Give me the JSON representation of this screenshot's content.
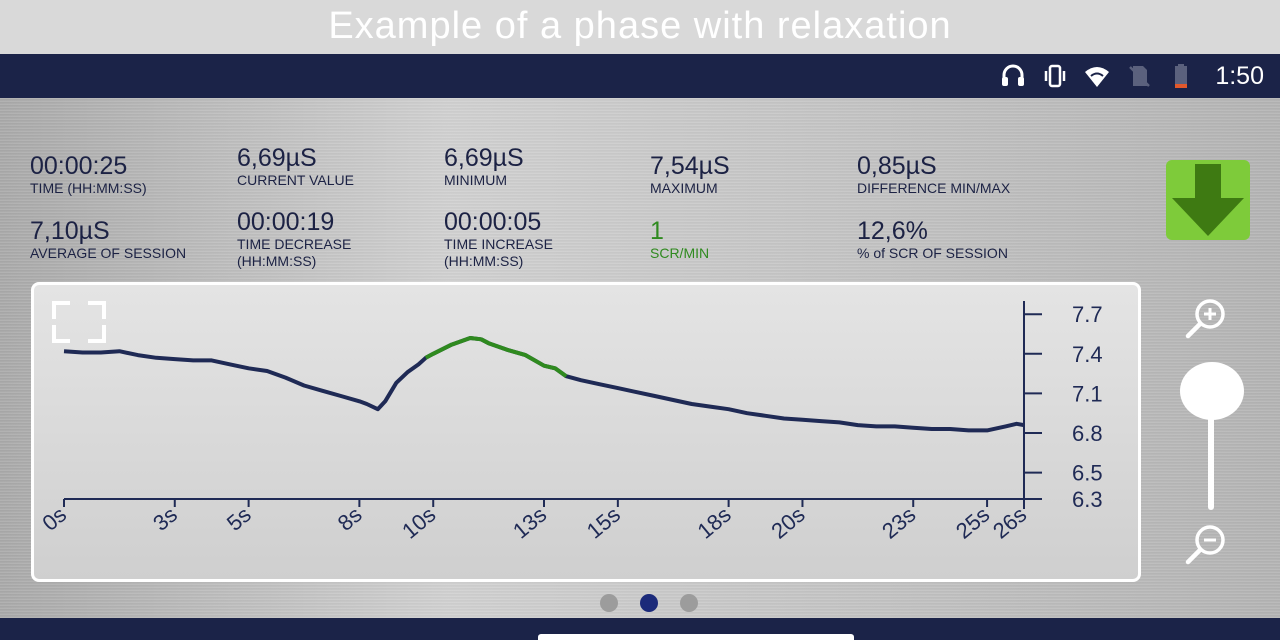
{
  "banner": {
    "title": "Example of a phase with relaxation"
  },
  "status_bar": {
    "time": "1:50",
    "icons": [
      "headset-icon",
      "vibrate-icon",
      "wifi-icon",
      "no-sim-icon",
      "battery-low-icon"
    ]
  },
  "stats": [
    {
      "value": "00:00:25",
      "label": "TIME (HH:MM:SS)"
    },
    {
      "value": "6,69µS",
      "label": "CURRENT VALUE"
    },
    {
      "value": "6,69µS",
      "label": "MINIMUM"
    },
    {
      "value": "7,54µS",
      "label": "MAXIMUM"
    },
    {
      "value": "0,85µS",
      "label": "DIFFERENCE MIN/MAX"
    },
    {
      "value": "7,10µS",
      "label": "AVERAGE OF SESSION"
    },
    {
      "value": "00:00:19",
      "label": "TIME DECREASE",
      "label2": "(HH:MM:SS)"
    },
    {
      "value": "00:00:05",
      "label": "TIME INCREASE",
      "label2": "(HH:MM:SS)"
    },
    {
      "value": "1",
      "label": "SCR/MIN"
    },
    {
      "value": "12,6%",
      "label": "% of SCR OF SESSION"
    }
  ],
  "colors": {
    "line": "#1f2a55",
    "highlight": "#2f8a1f",
    "accent_green": "#7ecb3a",
    "bar_navy": "#1b2348"
  },
  "chart_data": {
    "type": "line",
    "x_ticks": [
      "0s",
      "3s",
      "5s",
      "8s",
      "10s",
      "13s",
      "15s",
      "18s",
      "20s",
      "23s",
      "25s",
      "26s"
    ],
    "x_tick_values": [
      0,
      3,
      5,
      8,
      10,
      13,
      15,
      18,
      20,
      23,
      25,
      26
    ],
    "y_ticks": [
      "7.7",
      "7.4",
      "7.1",
      "6.8",
      "6.5",
      "6.3"
    ],
    "y_tick_values": [
      7.7,
      7.4,
      7.1,
      6.8,
      6.5,
      6.3
    ],
    "xlim": [
      0,
      26
    ],
    "ylim": [
      6.3,
      7.8
    ],
    "series": [
      {
        "values": [
          [
            0,
            7.42
          ],
          [
            0.5,
            7.41
          ],
          [
            1,
            7.41
          ],
          [
            1.5,
            7.42
          ],
          [
            2,
            7.39
          ],
          [
            2.5,
            7.37
          ],
          [
            3,
            7.36
          ],
          [
            3.5,
            7.35
          ],
          [
            4,
            7.35
          ],
          [
            4.5,
            7.32
          ],
          [
            5,
            7.29
          ],
          [
            5.5,
            7.27
          ],
          [
            6,
            7.22
          ],
          [
            6.5,
            7.16
          ],
          [
            7,
            7.12
          ],
          [
            7.5,
            7.08
          ],
          [
            8,
            7.04
          ],
          [
            8.2,
            7.02
          ],
          [
            8.5,
            6.98
          ],
          [
            8.7,
            7.04
          ],
          [
            9,
            7.18
          ],
          [
            9.3,
            7.26
          ],
          [
            9.6,
            7.32
          ],
          [
            9.8,
            7.37
          ],
          [
            10,
            7.4
          ],
          [
            10.5,
            7.47
          ],
          [
            11,
            7.52
          ],
          [
            11.3,
            7.51
          ],
          [
            11.5,
            7.48
          ],
          [
            12,
            7.43
          ],
          [
            12.5,
            7.39
          ],
          [
            13,
            7.31
          ],
          [
            13.3,
            7.29
          ],
          [
            13.6,
            7.23
          ],
          [
            14,
            7.2
          ],
          [
            14.5,
            7.17
          ],
          [
            15,
            7.14
          ],
          [
            15.5,
            7.11
          ],
          [
            16,
            7.08
          ],
          [
            16.5,
            7.05
          ],
          [
            17,
            7.02
          ],
          [
            17.5,
            7.0
          ],
          [
            18,
            6.98
          ],
          [
            18.5,
            6.95
          ],
          [
            19,
            6.93
          ],
          [
            19.5,
            6.91
          ],
          [
            20,
            6.9
          ],
          [
            20.5,
            6.89
          ],
          [
            21,
            6.88
          ],
          [
            21.5,
            6.86
          ],
          [
            22,
            6.85
          ],
          [
            22.5,
            6.85
          ],
          [
            23,
            6.84
          ],
          [
            23.5,
            6.83
          ],
          [
            24,
            6.83
          ],
          [
            24.5,
            6.82
          ],
          [
            25,
            6.82
          ],
          [
            25.5,
            6.85
          ],
          [
            25.8,
            6.87
          ],
          [
            26,
            6.86
          ]
        ]
      }
    ],
    "grid": false,
    "legend": false
  }
}
